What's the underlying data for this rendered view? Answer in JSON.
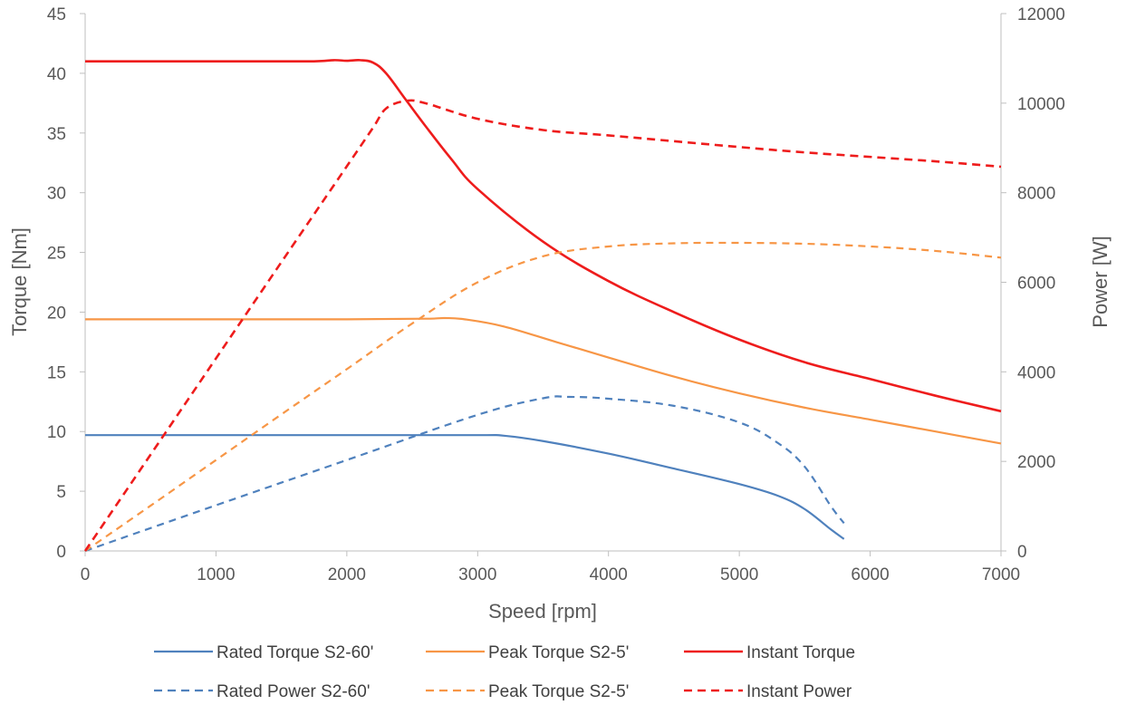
{
  "chart_data": {
    "type": "line",
    "title": "",
    "xlabel": "Speed [rpm]",
    "ylabel": "Torque [Nm]",
    "y2label": "Power [W]",
    "xlim": [
      0,
      7000
    ],
    "ylim": [
      0,
      45
    ],
    "y2lim": [
      0,
      12000
    ],
    "x_ticks": [
      0,
      1000,
      2000,
      3000,
      4000,
      5000,
      6000,
      7000
    ],
    "y_ticks": [
      0,
      5,
      10,
      15,
      20,
      25,
      30,
      35,
      40,
      45
    ],
    "y2_ticks": [
      0,
      2000,
      4000,
      6000,
      8000,
      10000,
      12000
    ],
    "grid": false,
    "legend_position": "bottom",
    "series": [
      {
        "name": "Rated Torque S2-60'",
        "axis": "left",
        "color": "#4f81bd",
        "dash": "solid",
        "points": [
          [
            0,
            9.7
          ],
          [
            1000,
            9.7
          ],
          [
            2000,
            9.7
          ],
          [
            3000,
            9.7
          ],
          [
            3200,
            9.65
          ],
          [
            3500,
            9.2
          ],
          [
            4000,
            8.15
          ],
          [
            4500,
            6.9
          ],
          [
            5000,
            5.6
          ],
          [
            5300,
            4.6
          ],
          [
            5500,
            3.5
          ],
          [
            5700,
            1.8
          ],
          [
            5800,
            1.0
          ]
        ]
      },
      {
        "name": "Peak Torque S2-5'",
        "axis": "left",
        "color": "#f79646",
        "dash": "solid",
        "points": [
          [
            0,
            19.4
          ],
          [
            1000,
            19.4
          ],
          [
            2000,
            19.4
          ],
          [
            2600,
            19.45
          ],
          [
            2750,
            19.5
          ],
          [
            2900,
            19.4
          ],
          [
            3200,
            18.8
          ],
          [
            3600,
            17.5
          ],
          [
            4000,
            16.2
          ],
          [
            4500,
            14.6
          ],
          [
            5000,
            13.2
          ],
          [
            5500,
            12.0
          ],
          [
            6000,
            11.0
          ],
          [
            6500,
            10.0
          ],
          [
            7000,
            9.0
          ]
        ]
      },
      {
        "name": "Instant Torque",
        "axis": "left",
        "color": "#ee1c1c",
        "dash": "solid",
        "points": [
          [
            0,
            41.0
          ],
          [
            1000,
            41.0
          ],
          [
            1700,
            41.0
          ],
          [
            1900,
            41.1
          ],
          [
            2000,
            41.05
          ],
          [
            2100,
            41.1
          ],
          [
            2200,
            40.9
          ],
          [
            2300,
            40.0
          ],
          [
            2450,
            37.8
          ],
          [
            2600,
            35.6
          ],
          [
            2800,
            32.8
          ],
          [
            3000,
            30.3
          ],
          [
            3500,
            25.9
          ],
          [
            4000,
            22.6
          ],
          [
            4500,
            20.0
          ],
          [
            5000,
            17.7
          ],
          [
            5500,
            15.8
          ],
          [
            6000,
            14.4
          ],
          [
            6500,
            13.0
          ],
          [
            7000,
            11.7
          ]
        ]
      },
      {
        "name": "Rated Power S2-60'",
        "axis": "right",
        "color": "#4f81bd",
        "dash": "dashed",
        "points": [
          [
            0,
            0
          ],
          [
            1000,
            1020
          ],
          [
            2000,
            2030
          ],
          [
            3000,
            3040
          ],
          [
            3500,
            3410
          ],
          [
            3700,
            3440
          ],
          [
            4000,
            3400
          ],
          [
            4500,
            3240
          ],
          [
            5000,
            2870
          ],
          [
            5300,
            2400
          ],
          [
            5500,
            1880
          ],
          [
            5700,
            1000
          ],
          [
            5800,
            620
          ]
        ]
      },
      {
        "name": "Peak Torque S2-5'",
        "axis": "right",
        "color": "#f79646",
        "dash": "dashed",
        "points": [
          [
            0,
            0
          ],
          [
            500,
            1010
          ],
          [
            1000,
            2030
          ],
          [
            1500,
            3050
          ],
          [
            2000,
            4060
          ],
          [
            2500,
            5080
          ],
          [
            3000,
            6000
          ],
          [
            3500,
            6580
          ],
          [
            4000,
            6800
          ],
          [
            4500,
            6870
          ],
          [
            5000,
            6880
          ],
          [
            5500,
            6860
          ],
          [
            6000,
            6800
          ],
          [
            6500,
            6700
          ],
          [
            7000,
            6550
          ]
        ]
      },
      {
        "name": "Instant Power",
        "axis": "right",
        "color": "#ee1c1c",
        "dash": "dashed",
        "points": [
          [
            0,
            0
          ],
          [
            500,
            2150
          ],
          [
            1000,
            4300
          ],
          [
            1500,
            6450
          ],
          [
            2000,
            8590
          ],
          [
            2200,
            9450
          ],
          [
            2300,
            9880
          ],
          [
            2450,
            10050
          ],
          [
            2600,
            10000
          ],
          [
            3000,
            9650
          ],
          [
            3500,
            9400
          ],
          [
            4000,
            9280
          ],
          [
            4500,
            9150
          ],
          [
            5000,
            9020
          ],
          [
            5500,
            8900
          ],
          [
            6000,
            8800
          ],
          [
            6500,
            8700
          ],
          [
            7000,
            8580
          ]
        ]
      }
    ]
  }
}
